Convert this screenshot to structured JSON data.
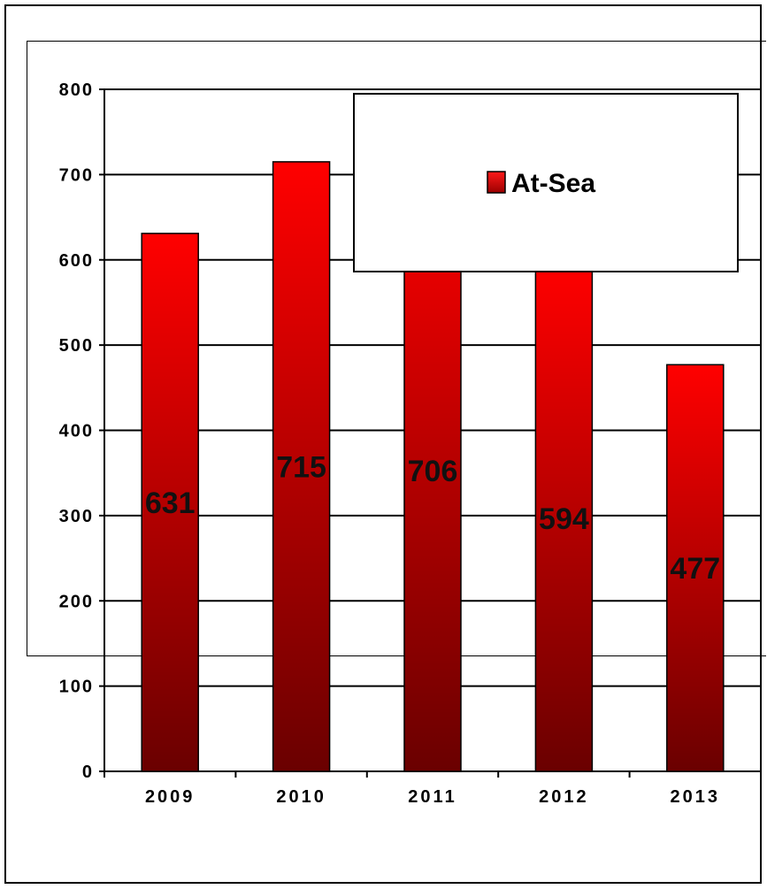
{
  "chart_data": {
    "type": "bar",
    "categories": [
      "2009",
      "2010",
      "2011",
      "2012",
      "2013"
    ],
    "series": [
      {
        "name": "At-Sea",
        "values": [
          631,
          715,
          706,
          594,
          477
        ]
      }
    ],
    "data_labels": [
      "631",
      "715",
      "706",
      "594",
      "477"
    ],
    "y_ticks": [
      "0",
      "100",
      "200",
      "300",
      "400",
      "500",
      "600",
      "700",
      "800"
    ],
    "ylim": [
      0,
      800
    ],
    "grid": true,
    "legend_position": "top-right",
    "colors": {
      "bar_top": "#ff0000",
      "bar_bottom": "#6a0000",
      "legend_swatch": "#e00000"
    }
  }
}
